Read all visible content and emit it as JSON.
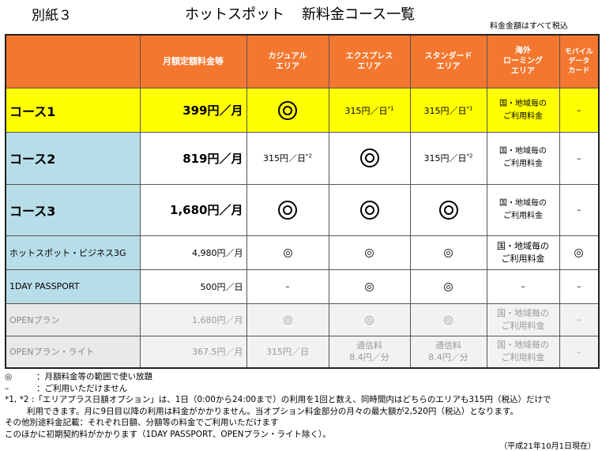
{
  "header": {
    "attachment": "別紙３",
    "title_a": "ホットスポット",
    "title_b": "新料金コース一覧",
    "tax_note": "料金金額はすべて税込"
  },
  "columns": {
    "monthly": "月額定額料金等",
    "casual": [
      "カジュアル",
      "エリア"
    ],
    "express": [
      "エクスプレス",
      "エリア"
    ],
    "standard": [
      "スタンダード",
      "エリア"
    ],
    "roaming": [
      "海外",
      "ローミング",
      "エリア"
    ],
    "mobile": [
      "モバイル",
      "データ",
      "カード"
    ]
  },
  "rows": {
    "course1": {
      "name": "コース1",
      "monthly": "399円／月",
      "express": "315円／日",
      "express_mark": "*1",
      "standard": "315円／日",
      "standard_mark": "*1",
      "roaming": [
        "国・地域毎の",
        "ご利用料金"
      ],
      "mobile": "–"
    },
    "course2": {
      "name": "コース2",
      "monthly": "819円／月",
      "casual": "315円／日",
      "casual_mark": "*2",
      "standard": "315円／日",
      "standard_mark": "*2",
      "roaming": [
        "国・地域毎の",
        "ご利用料金"
      ],
      "mobile": "–"
    },
    "course3": {
      "name": "コース3",
      "monthly": "1,680円／月",
      "roaming": [
        "国・地域毎の",
        "ご利用料金"
      ],
      "mobile": "–"
    },
    "business": {
      "name": "ホットスポット・ビジネス3G",
      "monthly": "4,980円／月",
      "roaming": [
        "国・地域毎の",
        "ご利用料金"
      ]
    },
    "oneday": {
      "name": "1DAY PASSPORT",
      "monthly": "500円／日",
      "casual": "–",
      "roaming": "–",
      "mobile": "–"
    },
    "open": {
      "name": "OPENプラン",
      "monthly": "1,680円／月",
      "roaming": [
        "国・地域毎の",
        "ご利用料金"
      ],
      "mobile": "–"
    },
    "open_lite": {
      "name": "OPENプラン・ライト",
      "monthly": "367.5円／月",
      "casual": "315円／日",
      "express": [
        "通信料",
        "8.4円／分"
      ],
      "standard": [
        "通信料",
        "8.4円／分"
      ],
      "roaming": [
        "国・地域毎の",
        "ご利用料金"
      ],
      "mobile": "–"
    }
  },
  "notes": {
    "double_circle_sym": "◎",
    "double_circle_text": "：月額料金等の範囲で使い放題",
    "dash_sym": "–",
    "dash_text": "：ご利用いただけません",
    "star_line1": "*1, *2 :「エリアプラス日額オプション」は、1日（0:00から24:00まで）の利用を1回と数え、同時間内はどちらのエリアも315円（税込）だけで",
    "star_line2": "利用できます。月に9日目以降の利用は料金がかかりません。当オプション料金部分の月々の最大額が2,520円（税込）となります。",
    "other1": "その他別途料金記載：それぞれ日額、分額等の料金でご利用いただけます",
    "other2": "このほかに初期契約料がかかります（1DAY PASSPORT、OPENプラン・ライト除く）。",
    "as_of": "（平成21年10月1日現在）"
  },
  "icons": {
    "double_circle": "double-circle-icon"
  },
  "colors": {
    "header": "#f4772f",
    "course1": "#ffff00",
    "name_cell": "#b7dde8",
    "open_rows": "#f2f2f2"
  }
}
